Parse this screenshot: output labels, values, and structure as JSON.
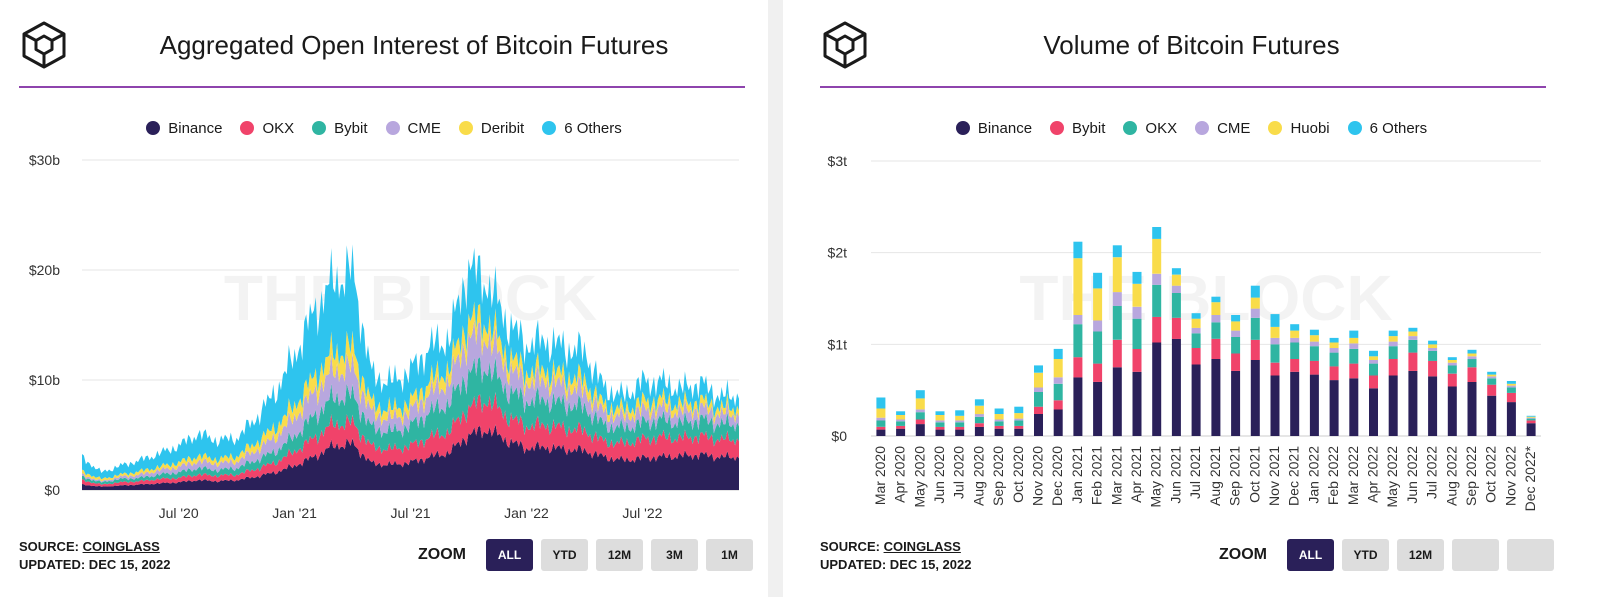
{
  "colors": {
    "binance": "#2a2059",
    "okx": "#f0436a",
    "bybit": "#2fb5a2",
    "cme": "#b8a7de",
    "deribit": "#f9dc4a",
    "huobi": "#f9dc4a",
    "others": "#2ec4ee",
    "rule": "#8e44ad",
    "zoom_active": "#2a2059"
  },
  "left": {
    "title": "Aggregated Open Interest of Bitcoin Futures",
    "watermark": "THE BLOCK",
    "source_prefix": "SOURCE: ",
    "source_name": "COINGLASS",
    "updated": "UPDATED: DEC 15, 2022",
    "zoom_label": "ZOOM",
    "zoom_buttons": [
      "ALL",
      "YTD",
      "12M",
      "3M",
      "1M"
    ],
    "zoom_active": 0
  },
  "right": {
    "title": "Volume of Bitcoin Futures",
    "watermark": "THE BLOCK",
    "source_prefix": "SOURCE: ",
    "source_name": "COINGLASS",
    "updated": "UPDATED: DEC 15, 2022",
    "zoom_label": "ZOOM",
    "zoom_buttons": [
      "ALL",
      "YTD",
      "12M",
      "",
      ""
    ],
    "zoom_active": 0
  },
  "chart_data": [
    {
      "type": "area",
      "stacked": true,
      "title": "Aggregated Open Interest of Bitcoin Futures",
      "legend_position": "top-center",
      "grid": true,
      "y_ticks": [
        "$0",
        "$10b",
        "$20b",
        "$30b"
      ],
      "ylim": [
        0,
        30
      ],
      "y_unit": "billion USD",
      "x_range": [
        "2020-02",
        "2022-12"
      ],
      "x_ticks": [
        {
          "label": "Jul '20",
          "date": "2020-07"
        },
        {
          "label": "Jan '21",
          "date": "2021-01"
        },
        {
          "label": "Jul '21",
          "date": "2021-07"
        },
        {
          "label": "Jan '22",
          "date": "2022-01"
        },
        {
          "label": "Jul '22",
          "date": "2022-07"
        }
      ],
      "dates": [
        "2020-02",
        "2020-03",
        "2020-04",
        "2020-05",
        "2020-06",
        "2020-07",
        "2020-08",
        "2020-09",
        "2020-10",
        "2020-11",
        "2020-12",
        "2021-01",
        "2021-02",
        "2021-03",
        "2021-04",
        "2021-05",
        "2021-06",
        "2021-07",
        "2021-08",
        "2021-09",
        "2021-10",
        "2021-11",
        "2021-12",
        "2022-01",
        "2022-02",
        "2022-03",
        "2022-04",
        "2022-05",
        "2022-06",
        "2022-07",
        "2022-08",
        "2022-09",
        "2022-10",
        "2022-11",
        "2022-12"
      ],
      "series": [
        {
          "name": "Binance",
          "color_key": "binance",
          "values": [
            0.5,
            0.3,
            0.4,
            0.5,
            0.6,
            0.7,
            0.9,
            0.8,
            0.9,
            1.2,
            1.6,
            2.2,
            3.0,
            4.0,
            4.2,
            2.4,
            2.3,
            2.5,
            3.0,
            3.4,
            5.0,
            5.5,
            4.5,
            3.8,
            3.9,
            3.7,
            3.6,
            3.0,
            2.7,
            2.9,
            3.0,
            3.1,
            3.2,
            3.0,
            3.0
          ]
        },
        {
          "name": "OKX",
          "color_key": "okx",
          "values": [
            0.4,
            0.2,
            0.3,
            0.3,
            0.4,
            0.4,
            0.5,
            0.5,
            0.5,
            0.7,
            0.9,
            1.3,
            1.7,
            2.0,
            1.9,
            1.5,
            1.4,
            1.5,
            1.8,
            1.9,
            2.5,
            2.7,
            2.2,
            2.0,
            2.0,
            1.9,
            1.8,
            1.4,
            1.5,
            1.7,
            1.8,
            1.6,
            1.7,
            1.6,
            1.6
          ]
        },
        {
          "name": "Bybit",
          "color_key": "bybit",
          "values": [
            0.3,
            0.2,
            0.3,
            0.3,
            0.4,
            0.5,
            0.6,
            0.5,
            0.6,
            0.8,
            1.0,
            1.4,
            2.0,
            2.4,
            2.5,
            1.7,
            1.6,
            1.8,
            2.3,
            2.6,
            3.2,
            3.0,
            2.4,
            2.3,
            2.3,
            2.2,
            2.1,
            1.5,
            1.4,
            1.5,
            1.6,
            1.4,
            1.5,
            1.4,
            1.4
          ]
        },
        {
          "name": "CME",
          "color_key": "cme",
          "values": [
            0.2,
            0.1,
            0.2,
            0.3,
            0.4,
            0.5,
            0.6,
            0.6,
            0.6,
            0.9,
            1.3,
            1.7,
            2.1,
            2.4,
            2.5,
            1.3,
            1.2,
            1.3,
            1.7,
            2.0,
            3.2,
            2.7,
            2.0,
            1.7,
            1.7,
            1.6,
            1.5,
            1.1,
            1.0,
            1.1,
            1.0,
            1.0,
            1.0,
            0.9,
            0.9
          ]
        },
        {
          "name": "Deribit",
          "color_key": "deribit",
          "values": [
            0.3,
            0.2,
            0.2,
            0.3,
            0.3,
            0.4,
            0.5,
            0.4,
            0.5,
            0.7,
            0.9,
            1.1,
            1.4,
            1.7,
            1.8,
            0.9,
            0.8,
            0.9,
            1.1,
            1.2,
            1.6,
            1.4,
            1.2,
            1.0,
            1.0,
            1.0,
            1.0,
            0.7,
            0.7,
            0.8,
            0.8,
            0.7,
            0.7,
            0.6,
            0.6
          ]
        },
        {
          "name": "6 Others",
          "color_key": "others",
          "values": [
            1.3,
            0.6,
            0.8,
            1.0,
            1.2,
            1.5,
            2.0,
            1.7,
            1.6,
            2.2,
            3.2,
            4.5,
            6.0,
            6.5,
            7.0,
            2.6,
            2.5,
            2.8,
            3.1,
            2.7,
            4.8,
            3.5,
            3.0,
            2.4,
            2.7,
            2.5,
            2.6,
            1.6,
            1.2,
            1.8,
            1.6,
            1.4,
            1.6,
            1.0,
            1.1
          ]
        }
      ]
    },
    {
      "type": "bar",
      "stacked": true,
      "title": "Volume of Bitcoin Futures",
      "legend_position": "top-center",
      "grid": true,
      "y_ticks": [
        "$0",
        "$1t",
        "$2t",
        "$3t"
      ],
      "ylim": [
        0,
        3
      ],
      "y_unit": "trillion USD",
      "categories": [
        "Mar 2020",
        "Apr 2020",
        "May 2020",
        "Jun 2020",
        "Jul 2020",
        "Aug 2020",
        "Sep 2020",
        "Oct 2020",
        "Nov 2020",
        "Dec 2020",
        "Jan 2021",
        "Feb 2021",
        "Mar 2021",
        "Apr 2021",
        "May 2021",
        "Jun 2021",
        "Jul 2021",
        "Aug 2021",
        "Sep 2021",
        "Oct 2021",
        "Nov 2021",
        "Dec 2021",
        "Jan 2022",
        "Feb 2022",
        "Mar 2022",
        "Apr 2022",
        "May 2022",
        "Jun 2022",
        "Jul 2022",
        "Aug 2022",
        "Sep 2022",
        "Oct 2022",
        "Nov 2022",
        "Dec 2022*"
      ],
      "series": [
        {
          "name": "Binance",
          "color_key": "binance",
          "values": [
            0.07,
            0.08,
            0.13,
            0.07,
            0.07,
            0.1,
            0.08,
            0.08,
            0.24,
            0.29,
            0.64,
            0.59,
            0.75,
            0.7,
            1.02,
            1.06,
            0.78,
            0.84,
            0.71,
            0.83,
            0.66,
            0.7,
            0.67,
            0.61,
            0.63,
            0.52,
            0.66,
            0.71,
            0.65,
            0.54,
            0.59,
            0.44,
            0.37,
            0.14
          ]
        },
        {
          "name": "Bybit",
          "color_key": "okx",
          "values": [
            0.03,
            0.03,
            0.05,
            0.03,
            0.03,
            0.04,
            0.03,
            0.03,
            0.08,
            0.1,
            0.22,
            0.2,
            0.3,
            0.25,
            0.28,
            0.23,
            0.18,
            0.22,
            0.19,
            0.22,
            0.14,
            0.14,
            0.15,
            0.15,
            0.16,
            0.14,
            0.18,
            0.2,
            0.17,
            0.14,
            0.16,
            0.12,
            0.1,
            0.03
          ]
        },
        {
          "name": "OKX",
          "color_key": "bybit",
          "values": [
            0.07,
            0.05,
            0.08,
            0.05,
            0.05,
            0.07,
            0.05,
            0.06,
            0.16,
            0.18,
            0.36,
            0.35,
            0.37,
            0.33,
            0.35,
            0.27,
            0.16,
            0.18,
            0.18,
            0.24,
            0.2,
            0.18,
            0.16,
            0.15,
            0.16,
            0.13,
            0.14,
            0.14,
            0.11,
            0.09,
            0.09,
            0.07,
            0.06,
            0.02
          ]
        },
        {
          "name": "CME",
          "color_key": "cme",
          "values": [
            0.03,
            0.02,
            0.03,
            0.02,
            0.02,
            0.03,
            0.02,
            0.02,
            0.05,
            0.07,
            0.1,
            0.12,
            0.15,
            0.13,
            0.12,
            0.08,
            0.06,
            0.08,
            0.07,
            0.1,
            0.07,
            0.05,
            0.05,
            0.05,
            0.06,
            0.04,
            0.05,
            0.04,
            0.03,
            0.03,
            0.03,
            0.02,
            0.02,
            0.01
          ]
        },
        {
          "name": "Huobi",
          "color_key": "huobi",
          "values": [
            0.1,
            0.05,
            0.12,
            0.06,
            0.05,
            0.09,
            0.06,
            0.06,
            0.16,
            0.2,
            0.62,
            0.35,
            0.38,
            0.25,
            0.38,
            0.12,
            0.1,
            0.14,
            0.1,
            0.12,
            0.12,
            0.08,
            0.07,
            0.06,
            0.06,
            0.04,
            0.06,
            0.05,
            0.04,
            0.03,
            0.03,
            0.02,
            0.02,
            0.01
          ]
        },
        {
          "name": "6 Others",
          "color_key": "others",
          "values": [
            0.12,
            0.04,
            0.09,
            0.04,
            0.06,
            0.07,
            0.06,
            0.07,
            0.08,
            0.11,
            0.18,
            0.17,
            0.13,
            0.13,
            0.13,
            0.07,
            0.06,
            0.06,
            0.07,
            0.13,
            0.14,
            0.07,
            0.06,
            0.05,
            0.08,
            0.06,
            0.06,
            0.04,
            0.04,
            0.03,
            0.04,
            0.03,
            0.03,
            0.01
          ]
        }
      ]
    }
  ]
}
